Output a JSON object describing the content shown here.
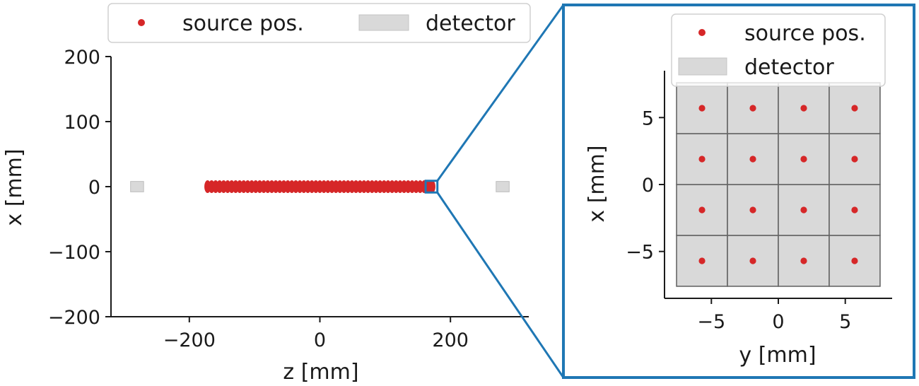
{
  "colors": {
    "source": "#d62728",
    "detector_fill": "#d9d9d9",
    "detector_edge": "#666666",
    "inset_frame": "#1f77b4",
    "axis": "#1a1a1a"
  },
  "chart_data": [
    {
      "type": "scatter",
      "panel": "main",
      "xlabel": "z [mm]",
      "ylabel": "x [mm]",
      "xlim": [
        -320,
        320
      ],
      "ylim": [
        -200,
        200
      ],
      "xticks": [
        -200,
        0,
        200
      ],
      "yticks": [
        -200,
        -100,
        0,
        100,
        200
      ],
      "xtick_labels": [
        "−200",
        "0",
        "200"
      ],
      "ytick_labels": [
        "−200",
        "−100",
        "0",
        "100",
        "200"
      ],
      "grid": false,
      "legend": {
        "placement": "top",
        "entries": [
          {
            "label": "source pos.",
            "marker": "dot"
          },
          {
            "label": "detector",
            "marker": "patch"
          }
        ]
      },
      "series": [
        {
          "name": "source pos.",
          "z_start": -172,
          "z_end": 172,
          "count": 57,
          "x": 0
        }
      ],
      "detectors": [
        {
          "z_min": -290,
          "z_max": -270,
          "x_min": -8,
          "x_max": 8
        },
        {
          "z_min": 270,
          "z_max": 290,
          "x_min": -8,
          "x_max": 8
        }
      ],
      "zoom_region": {
        "z_min": 162,
        "z_max": 180,
        "x_min": -9,
        "x_max": 9
      }
    },
    {
      "type": "scatter",
      "panel": "inset",
      "xlabel": "y [mm]",
      "ylabel": "x [mm]",
      "xlim": [
        -8.5,
        8.5
      ],
      "ylim": [
        -8.5,
        8.5
      ],
      "xticks": [
        -5,
        0,
        5
      ],
      "yticks": [
        -5,
        0,
        5
      ],
      "xtick_labels": [
        "−5",
        "0",
        "5"
      ],
      "ytick_labels": [
        "−5",
        "0",
        "5"
      ],
      "grid": false,
      "legend": {
        "placement": "top-right",
        "entries": [
          {
            "label": "source pos.",
            "marker": "dot"
          },
          {
            "label": "detector",
            "marker": "patch"
          }
        ]
      },
      "series": [
        {
          "name": "source pos.",
          "grid_coords": [
            -5.7,
            -1.9,
            1.9,
            5.7
          ]
        }
      ],
      "detector_grid": {
        "edges": [
          -7.6,
          -3.8,
          0,
          3.8,
          7.6
        ]
      }
    }
  ]
}
